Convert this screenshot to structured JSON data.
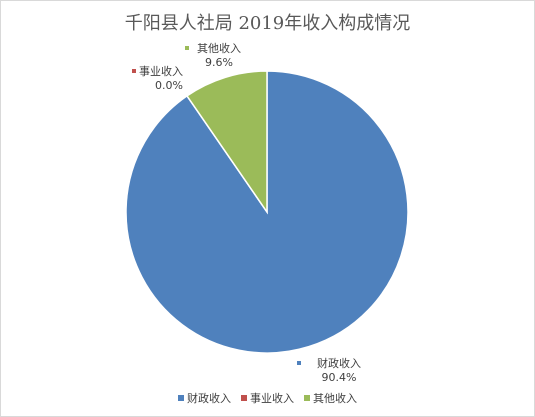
{
  "chart_data": {
    "type": "pie",
    "title": "千阳县人社局 2019年收入构成情况",
    "categories": [
      "财政收入",
      "事业收入",
      "其他收入"
    ],
    "values": [
      90.4,
      0.0,
      9.6
    ],
    "value_labels": [
      "90.4%",
      "0.0%",
      "9.6%"
    ],
    "colors": [
      "#4f81bd",
      "#c0504d",
      "#9bbb59"
    ],
    "legend": "bottom"
  }
}
